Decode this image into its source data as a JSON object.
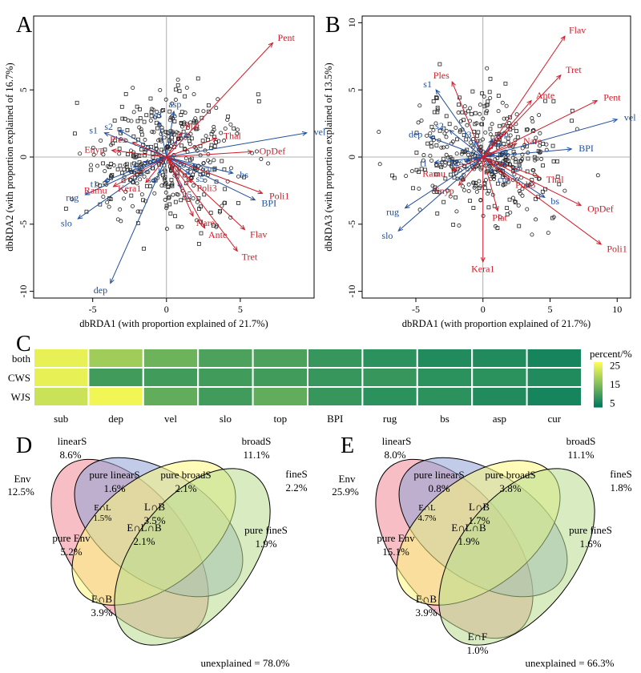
{
  "figure": {
    "panel_letters": [
      "A",
      "B",
      "C",
      "D",
      "E"
    ]
  },
  "colors": {
    "species": "#1f4e9c",
    "env": "#d01c2a",
    "axis": "#000000",
    "heat_low": "#007a5e",
    "heat_high": "#fbfb55",
    "venn_env": "#f08a96",
    "venn_linear": "#8fa3d6",
    "venn_broad": "#fbf77c",
    "venn_fine": "#b9dc8e"
  },
  "chart_data": [
    {
      "panel": "A",
      "type": "scatter",
      "xlabel": "dbRDA1 (with proportion explained of 21.7%)",
      "ylabel": "dbRDA2 (with proportion explained of 16.7%)",
      "xlim": [
        -9,
        10
      ],
      "ylim": [
        -10.5,
        10.5
      ],
      "xticks": [
        -5,
        0,
        5
      ],
      "yticks": [
        -10,
        -5,
        0,
        5
      ],
      "seed": 11,
      "blue_vectors": [
        {
          "label": "vel",
          "x": 9.5,
          "y": 1.8
        },
        {
          "label": "BPI",
          "x": 6.0,
          "y": -3.2
        },
        {
          "label": "bs",
          "x": 4.5,
          "y": -1.2
        },
        {
          "label": "slo",
          "x": -6.0,
          "y": -4.6
        },
        {
          "label": "rug",
          "x": -5.5,
          "y": -2.8
        },
        {
          "label": "dep",
          "x": -3.8,
          "y": -9.4
        },
        {
          "label": "s1",
          "x": -4.2,
          "y": 1.8
        },
        {
          "label": "s2",
          "x": -3.2,
          "y": 2.0
        },
        {
          "label": "s3",
          "x": -0.5,
          "y": 2.6
        },
        {
          "label": "t1",
          "x": -4.2,
          "y": -1.8
        },
        {
          "label": "t2",
          "x": -1.5,
          "y": -0.4
        },
        {
          "label": "t4",
          "x": 0.7,
          "y": 1.2
        },
        {
          "label": "asp",
          "x": 0.5,
          "y": 3.4
        },
        {
          "label": "s4",
          "x": -0.5,
          "y": -1.2
        },
        {
          "label": "s5",
          "x": 1.6,
          "y": -1.3
        },
        {
          "label": "t5",
          "x": 1.0,
          "y": -2.3
        },
        {
          "label": "cur",
          "x": 2.0,
          "y": -0.7
        }
      ],
      "red_vectors": [
        {
          "label": "Pent",
          "x": 7.2,
          "y": 8.5
        },
        {
          "label": "Thal",
          "x": 3.4,
          "y": 1.4
        },
        {
          "label": "OpDef",
          "x": 5.8,
          "y": 0.4
        },
        {
          "label": "Poli1",
          "x": 6.5,
          "y": -2.7
        },
        {
          "label": "Flav",
          "x": 5.3,
          "y": -5.4
        },
        {
          "label": "Tret",
          "x": 4.8,
          "y": -7.0
        },
        {
          "label": "Ante",
          "x": 2.6,
          "y": -5.3
        },
        {
          "label": "Nare",
          "x": 1.8,
          "y": -4.4
        },
        {
          "label": "Poli3",
          "x": 1.7,
          "y": -1.9
        },
        {
          "label": "Kera1",
          "x": -1.4,
          "y": -1.9
        },
        {
          "label": "Ramu",
          "x": -3.6,
          "y": -2.2
        },
        {
          "label": "Enyp",
          "x": -3.7,
          "y": 0.5
        },
        {
          "label": "Ples",
          "x": -2.3,
          "y": 1.1
        },
        {
          "label": "Plat",
          "x": 1.0,
          "y": 1.8
        }
      ]
    },
    {
      "panel": "B",
      "type": "scatter",
      "xlabel": "dbRDA1 (with proportion explained of 21.7%)",
      "ylabel": "dbRDA3 (with proportion explained of 13.5%)",
      "xlim": [
        -9,
        11
      ],
      "ylim": [
        -10.5,
        10.5
      ],
      "xticks": [
        -5,
        0,
        5,
        10
      ],
      "yticks": [
        -10,
        -5,
        0,
        5,
        10
      ],
      "seed": 29,
      "blue_vectors": [
        {
          "label": "vel",
          "x": 10.0,
          "y": 2.8
        },
        {
          "label": "BPI",
          "x": 6.6,
          "y": 0.6
        },
        {
          "label": "bs",
          "x": 4.6,
          "y": -3.0
        },
        {
          "label": "slo",
          "x": -6.3,
          "y": -5.5
        },
        {
          "label": "rug",
          "x": -5.8,
          "y": -3.8
        },
        {
          "label": "dep",
          "x": -4.0,
          "y": 1.5
        },
        {
          "label": "s1",
          "x": -3.5,
          "y": 5.0
        },
        {
          "label": "s2",
          "x": -2.5,
          "y": 2.0
        },
        {
          "label": "t1",
          "x": -3.6,
          "y": -0.4
        },
        {
          "label": "t2",
          "x": -1.3,
          "y": -0.3
        },
        {
          "label": "t3",
          "x": -0.6,
          "y": 1.2
        },
        {
          "label": "s3",
          "x": -0.6,
          "y": -0.2
        },
        {
          "label": "t4",
          "x": 0.8,
          "y": 0.2
        },
        {
          "label": "asp",
          "x": 0.7,
          "y": 1.3
        },
        {
          "label": "s4",
          "x": 0.5,
          "y": 0.6
        },
        {
          "label": "s5",
          "x": 1.8,
          "y": -0.6
        },
        {
          "label": "cur",
          "x": 0.8,
          "y": -1.2
        }
      ],
      "red_vectors": [
        {
          "label": "Flav",
          "x": 6.1,
          "y": 9.0
        },
        {
          "label": "Tret",
          "x": 5.8,
          "y": 6.1
        },
        {
          "label": "Pent",
          "x": 8.5,
          "y": 4.2
        },
        {
          "label": "Ante",
          "x": 3.6,
          "y": 4.2
        },
        {
          "label": "Nare",
          "x": 2.5,
          "y": 1.0
        },
        {
          "label": "Thal",
          "x": 4.2,
          "y": -1.5
        },
        {
          "label": "OpDef",
          "x": 7.3,
          "y": -3.6
        },
        {
          "label": "Poli1",
          "x": 8.8,
          "y": -6.5
        },
        {
          "label": "Poli3",
          "x": 2.0,
          "y": -1.7
        },
        {
          "label": "Plat",
          "x": 1.1,
          "y": -4.0
        },
        {
          "label": "Kera1",
          "x": 0.0,
          "y": -7.8
        },
        {
          "label": "Ramu",
          "x": -2.3,
          "y": -1.0
        },
        {
          "label": "Enyp",
          "x": -1.8,
          "y": -2.1
        },
        {
          "label": "Ples",
          "x": -2.3,
          "y": 5.6
        }
      ]
    },
    {
      "panel": "C",
      "type": "heatmap",
      "rows": [
        "both",
        "CWS",
        "WJS"
      ],
      "columns": [
        "sub",
        "dep",
        "vel",
        "slo",
        "top",
        "BPI",
        "rug",
        "bs",
        "asp",
        "cur"
      ],
      "values": [
        [
          25,
          18,
          13,
          10,
          10,
          8,
          7,
          6,
          6,
          5
        ],
        [
          25,
          9,
          9,
          9,
          9,
          8,
          8,
          7,
          7,
          6
        ],
        [
          22,
          26,
          12,
          9,
          12,
          8,
          7,
          7,
          6,
          5
        ]
      ],
      "legend": {
        "title": "percent/%",
        "ticks": [
          25,
          15,
          5
        ],
        "range": [
          3,
          27
        ]
      }
    },
    {
      "panel": "D",
      "type": "venn",
      "sets": {
        "env": {
          "name": "Env",
          "value": "12.5%"
        },
        "linear": {
          "name": "linearS",
          "value": "8.6%"
        },
        "broad": {
          "name": "broadS",
          "value": "11.1%"
        },
        "fine": {
          "name": "fineS",
          "value": "2.2%"
        }
      },
      "regions": [
        {
          "label": "pure linearS",
          "value": "1.6%"
        },
        {
          "label": "pure broadS",
          "value": "2.1%"
        },
        {
          "label": "L∩B",
          "value": "3.5%"
        },
        {
          "label": "E∩L",
          "value": "1.5%"
        },
        {
          "label": "pure Env",
          "value": "5.2%"
        },
        {
          "label": "E∩L∩B",
          "value": "2.1%"
        },
        {
          "label": "pure fineS",
          "value": "1.9%"
        },
        {
          "label": "E∩B",
          "value": "3.9%"
        }
      ],
      "unexplained": "unexplained = 78.0%"
    },
    {
      "panel": "E",
      "type": "venn",
      "sets": {
        "env": {
          "name": "Env",
          "value": "25.9%"
        },
        "linear": {
          "name": "linearS",
          "value": "8.0%"
        },
        "broad": {
          "name": "broadS",
          "value": "11.1%"
        },
        "fine": {
          "name": "fineS",
          "value": "1.8%"
        }
      },
      "regions": [
        {
          "label": "pure linearS",
          "value": "0.8%"
        },
        {
          "label": "pure broadS",
          "value": "3.8%"
        },
        {
          "label": "L∩B",
          "value": "1.7%"
        },
        {
          "label": "E∩L",
          "value": "4.7%"
        },
        {
          "label": "pure Env",
          "value": "15.1%"
        },
        {
          "label": "E∩L∩B",
          "value": "1.9%"
        },
        {
          "label": "pure fineS",
          "value": "1.6%"
        },
        {
          "label": "E∩B",
          "value": "3.9%"
        },
        {
          "label": "E∩F",
          "value": "1.0%"
        }
      ],
      "unexplained": "unexplained = 66.3%"
    }
  ]
}
